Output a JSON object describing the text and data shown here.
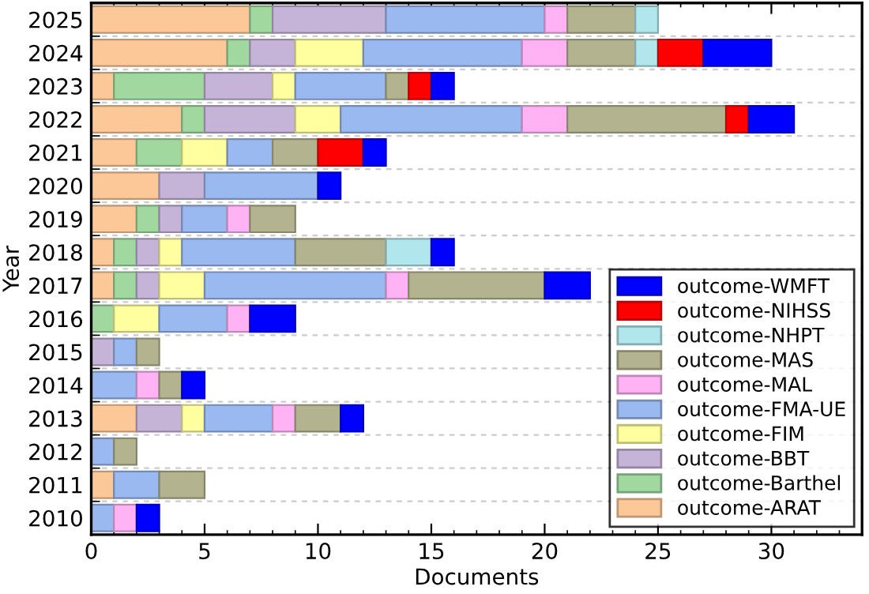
{
  "chart_data": {
    "type": "bar",
    "orientation": "horizontal",
    "stacked": true,
    "xlabel": "Documents",
    "ylabel": "Year",
    "categories": [
      "2025",
      "2024",
      "2023",
      "2022",
      "2021",
      "2020",
      "2019",
      "2018",
      "2017",
      "2016",
      "2015",
      "2014",
      "2013",
      "2012",
      "2011",
      "2010"
    ],
    "xlim": [
      0,
      34
    ],
    "xticks": [
      0,
      5,
      10,
      15,
      20,
      25,
      30
    ],
    "grid": "y",
    "legend": "bottom right",
    "series": [
      {
        "name": "outcome-ARAT",
        "color": "#fdc898",
        "values": [
          7,
          6,
          1,
          4,
          2,
          3,
          2,
          1,
          1,
          null,
          null,
          null,
          2,
          null,
          1,
          null
        ]
      },
      {
        "name": "outcome-Barthel",
        "color": "#a0d8a0",
        "values": [
          1,
          1,
          4,
          1,
          2,
          null,
          1,
          1,
          1,
          1,
          null,
          null,
          null,
          null,
          null,
          null
        ]
      },
      {
        "name": "outcome-BBT",
        "color": "#c5b3d8",
        "values": [
          5,
          2,
          3,
          4,
          null,
          2,
          1,
          1,
          1,
          null,
          1,
          null,
          2,
          null,
          null,
          null
        ]
      },
      {
        "name": "outcome-FIM",
        "color": "#ffff9f",
        "values": [
          null,
          3,
          1,
          2,
          2,
          null,
          null,
          1,
          2,
          2,
          null,
          null,
          1,
          null,
          null,
          null
        ]
      },
      {
        "name": "outcome-FMA-UE",
        "color": "#99b9f0",
        "values": [
          7,
          7,
          4,
          8,
          2,
          5,
          2,
          5,
          8,
          3,
          1,
          2,
          3,
          1,
          2,
          1
        ]
      },
      {
        "name": "outcome-MAL",
        "color": "#ffb3f5",
        "values": [
          1,
          2,
          null,
          2,
          null,
          null,
          1,
          null,
          1,
          1,
          null,
          1,
          1,
          null,
          null,
          1
        ]
      },
      {
        "name": "outcome-MAS",
        "color": "#b3b38f",
        "values": [
          3,
          3,
          1,
          7,
          2,
          null,
          2,
          4,
          6,
          null,
          1,
          1,
          2,
          1,
          2,
          null
        ]
      },
      {
        "name": "outcome-NHPT",
        "color": "#b0e6ec",
        "values": [
          1,
          1,
          null,
          null,
          null,
          null,
          null,
          2,
          null,
          null,
          null,
          null,
          null,
          null,
          null,
          null
        ]
      },
      {
        "name": "outcome-NIHSS",
        "color": "#ff0000",
        "values": [
          null,
          2,
          1,
          1,
          2,
          null,
          null,
          null,
          null,
          null,
          null,
          null,
          null,
          null,
          null,
          null
        ]
      },
      {
        "name": "outcome-WMFT",
        "color": "#0000ff",
        "values": [
          null,
          3,
          1,
          2,
          1,
          1,
          null,
          1,
          2,
          2,
          null,
          1,
          1,
          null,
          null,
          1
        ]
      }
    ]
  }
}
